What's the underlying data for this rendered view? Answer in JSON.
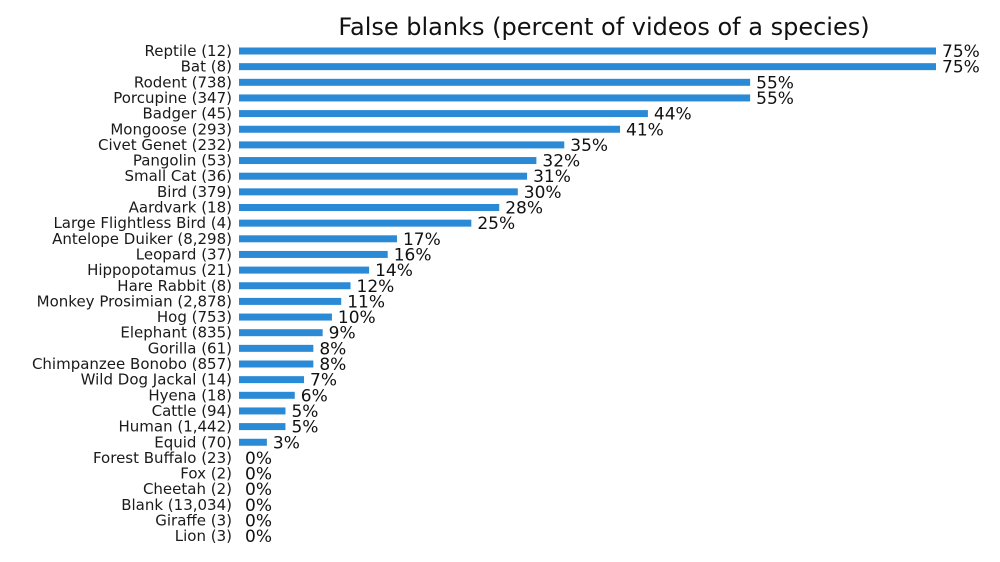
{
  "colors": {
    "bar": "#2b8ad6",
    "text": "#111111"
  },
  "chart_data": {
    "type": "bar",
    "orientation": "horizontal",
    "title": "False blanks (percent of videos of a species)",
    "xlabel": "",
    "ylabel": "",
    "xlim": [
      0,
      75
    ],
    "grid": false,
    "categories": [
      "Reptile  (12)",
      "Bat  (8)",
      "Rodent  (738)",
      "Porcupine  (347)",
      "Badger  (45)",
      "Mongoose  (293)",
      "Civet Genet  (232)",
      "Pangolin  (53)",
      "Small Cat  (36)",
      "Bird  (379)",
      "Aardvark  (18)",
      "Large Flightless Bird  (4)",
      "Antelope Duiker  (8,298)",
      "Leopard  (37)",
      "Hippopotamus  (21)",
      "Hare Rabbit  (8)",
      "Monkey Prosimian  (2,878)",
      "Hog  (753)",
      "Elephant  (835)",
      "Gorilla  (61)",
      "Chimpanzee Bonobo  (857)",
      "Wild Dog Jackal  (14)",
      "Hyena  (18)",
      "Cattle  (94)",
      "Human  (1,442)",
      "Equid  (70)",
      "Forest Buffalo  (23)",
      "Fox  (2)",
      "Cheetah  (2)",
      "Blank  (13,034)",
      "Giraffe  (3)",
      "Lion  (3)"
    ],
    "values": [
      75,
      75,
      55,
      55,
      44,
      41,
      35,
      32,
      31,
      30,
      28,
      25,
      17,
      16,
      14,
      12,
      11,
      10,
      9,
      8,
      8,
      7,
      6,
      5,
      5,
      3,
      0,
      0,
      0,
      0,
      0,
      0
    ],
    "value_labels": [
      "75%",
      "75%",
      "55%",
      "55%",
      "44%",
      "41%",
      "35%",
      "32%",
      "31%",
      "30%",
      "28%",
      "25%",
      "17%",
      "16%",
      "14%",
      "12%",
      "11%",
      "10%",
      "9%",
      "8%",
      "8%",
      "7%",
      "6%",
      "5%",
      "5%",
      "3%",
      "0%",
      "0%",
      "0%",
      "0%",
      "0%",
      "0%"
    ]
  }
}
